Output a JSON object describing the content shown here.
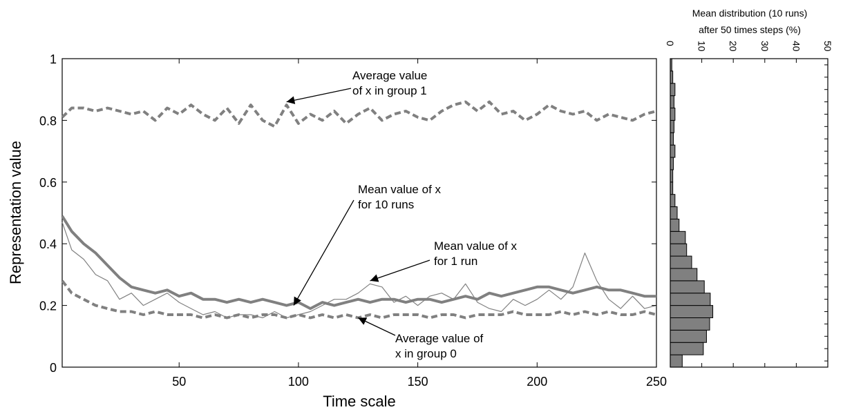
{
  "chart_data": [
    {
      "type": "line",
      "xlabel": "Time scale",
      "ylabel": "Representation value",
      "xlim": [
        1,
        250
      ],
      "ylim": [
        0,
        1
      ],
      "xticks": [
        50,
        100,
        150,
        200,
        250
      ],
      "yticks": [
        0,
        0.2,
        0.4,
        0.6,
        0.8,
        1
      ],
      "xtick_labels": [
        "50",
        "100",
        "150",
        "200",
        "250"
      ],
      "ytick_labels": [
        "0",
        "0.2",
        "0.4",
        "0.6",
        "0.8",
        "1"
      ],
      "grid": false,
      "series_color": "#808080",
      "series": [
        {
          "style": "dashed-thick",
          "x": [
            1,
            5,
            10,
            15,
            20,
            25,
            30,
            35,
            40,
            45,
            50,
            55,
            60,
            65,
            70,
            75,
            80,
            85,
            90,
            95,
            100,
            105,
            110,
            115,
            120,
            125,
            130,
            135,
            140,
            145,
            150,
            155,
            160,
            165,
            170,
            175,
            180,
            185,
            190,
            195,
            200,
            205,
            210,
            215,
            220,
            225,
            230,
            235,
            240,
            245,
            250
          ],
          "y": [
            0.81,
            0.84,
            0.84,
            0.83,
            0.84,
            0.83,
            0.82,
            0.83,
            0.8,
            0.84,
            0.82,
            0.85,
            0.82,
            0.8,
            0.84,
            0.79,
            0.85,
            0.8,
            0.78,
            0.85,
            0.79,
            0.82,
            0.8,
            0.83,
            0.79,
            0.82,
            0.84,
            0.8,
            0.82,
            0.83,
            0.81,
            0.8,
            0.83,
            0.85,
            0.86,
            0.83,
            0.86,
            0.82,
            0.83,
            0.8,
            0.82,
            0.85,
            0.83,
            0.82,
            0.83,
            0.8,
            0.82,
            0.81,
            0.8,
            0.82,
            0.83
          ]
        },
        {
          "style": "solid-thick",
          "x": [
            1,
            5,
            10,
            15,
            20,
            25,
            30,
            35,
            40,
            45,
            50,
            55,
            60,
            65,
            70,
            75,
            80,
            85,
            90,
            95,
            100,
            105,
            110,
            115,
            120,
            125,
            130,
            135,
            140,
            145,
            150,
            155,
            160,
            165,
            170,
            175,
            180,
            185,
            190,
            195,
            200,
            205,
            210,
            215,
            220,
            225,
            230,
            235,
            240,
            245,
            250
          ],
          "y": [
            0.49,
            0.44,
            0.4,
            0.37,
            0.33,
            0.29,
            0.26,
            0.25,
            0.24,
            0.25,
            0.23,
            0.24,
            0.22,
            0.22,
            0.21,
            0.22,
            0.21,
            0.22,
            0.21,
            0.2,
            0.21,
            0.19,
            0.21,
            0.2,
            0.21,
            0.22,
            0.21,
            0.22,
            0.22,
            0.21,
            0.22,
            0.22,
            0.21,
            0.22,
            0.23,
            0.22,
            0.24,
            0.23,
            0.24,
            0.25,
            0.26,
            0.26,
            0.25,
            0.24,
            0.25,
            0.26,
            0.25,
            0.25,
            0.24,
            0.23,
            0.23
          ]
        },
        {
          "style": "solid-thin",
          "x": [
            1,
            5,
            10,
            15,
            20,
            25,
            30,
            35,
            40,
            45,
            50,
            55,
            60,
            65,
            70,
            75,
            80,
            85,
            90,
            95,
            100,
            105,
            110,
            115,
            120,
            125,
            130,
            135,
            140,
            145,
            150,
            155,
            160,
            165,
            170,
            175,
            180,
            185,
            190,
            195,
            200,
            205,
            210,
            215,
            220,
            225,
            230,
            235,
            240,
            245,
            250
          ],
          "y": [
            0.47,
            0.38,
            0.35,
            0.3,
            0.28,
            0.22,
            0.24,
            0.2,
            0.22,
            0.24,
            0.21,
            0.19,
            0.17,
            0.18,
            0.16,
            0.17,
            0.17,
            0.16,
            0.18,
            0.16,
            0.17,
            0.18,
            0.2,
            0.22,
            0.22,
            0.24,
            0.27,
            0.26,
            0.21,
            0.23,
            0.2,
            0.23,
            0.24,
            0.22,
            0.27,
            0.21,
            0.19,
            0.18,
            0.22,
            0.2,
            0.22,
            0.25,
            0.22,
            0.26,
            0.37,
            0.28,
            0.22,
            0.19,
            0.23,
            0.19,
            0.2
          ]
        },
        {
          "style": "dashed-thick",
          "x": [
            1,
            5,
            10,
            15,
            20,
            25,
            30,
            35,
            40,
            45,
            50,
            55,
            60,
            65,
            70,
            75,
            80,
            85,
            90,
            95,
            100,
            105,
            110,
            115,
            120,
            125,
            130,
            135,
            140,
            145,
            150,
            155,
            160,
            165,
            170,
            175,
            180,
            185,
            190,
            195,
            200,
            205,
            210,
            215,
            220,
            225,
            230,
            235,
            240,
            245,
            250
          ],
          "y": [
            0.28,
            0.24,
            0.22,
            0.2,
            0.19,
            0.18,
            0.18,
            0.17,
            0.18,
            0.17,
            0.17,
            0.17,
            0.16,
            0.17,
            0.16,
            0.17,
            0.16,
            0.17,
            0.17,
            0.16,
            0.17,
            0.16,
            0.17,
            0.16,
            0.17,
            0.16,
            0.17,
            0.16,
            0.17,
            0.17,
            0.17,
            0.16,
            0.17,
            0.17,
            0.16,
            0.17,
            0.17,
            0.17,
            0.18,
            0.17,
            0.17,
            0.17,
            0.18,
            0.17,
            0.18,
            0.17,
            0.18,
            0.17,
            0.17,
            0.18,
            0.17
          ]
        }
      ],
      "annotations": [
        {
          "lines": [
            "Average value",
            "of x in group 1"
          ],
          "arrow_to": [
            95,
            0.86
          ]
        },
        {
          "lines": [
            "Mean value of x",
            "for 10 runs"
          ],
          "arrow_to": [
            98,
            0.2
          ]
        },
        {
          "lines": [
            "Mean value of x",
            "for 1 run"
          ],
          "arrow_to": [
            130,
            0.28
          ]
        },
        {
          "lines": [
            "Average value of",
            "x in group 0"
          ],
          "arrow_to": [
            125,
            0.16
          ]
        }
      ]
    },
    {
      "type": "bar",
      "orientation": "horizontal",
      "title_lines": [
        "Mean distribution (10 runs)",
        "after 50 times steps (%)"
      ],
      "xlim": [
        0,
        50
      ],
      "xticks": [
        0,
        10,
        20,
        30,
        40,
        50
      ],
      "xtick_labels": [
        "0",
        "10",
        "20",
        "30",
        "40",
        "50"
      ],
      "ylim": [
        0,
        1
      ],
      "bar_width": 0.04,
      "bar_color": "#808080",
      "bins_center": [
        0.02,
        0.06,
        0.1,
        0.14,
        0.18,
        0.22,
        0.26,
        0.3,
        0.34,
        0.38,
        0.42,
        0.46,
        0.5,
        0.54,
        0.58,
        0.62,
        0.66,
        0.7,
        0.74,
        0.78,
        0.82,
        0.86,
        0.9,
        0.94,
        0.98
      ],
      "values": [
        3.8,
        10.5,
        11.5,
        12.5,
        13.5,
        12.7,
        10.8,
        8.5,
        6.8,
        5.2,
        4.8,
        2.8,
        2.2,
        1.5,
        0.8,
        0.8,
        1.0,
        1.5,
        1.0,
        1.2,
        1.5,
        1.2,
        1.5,
        0.8,
        0.5
      ]
    }
  ]
}
